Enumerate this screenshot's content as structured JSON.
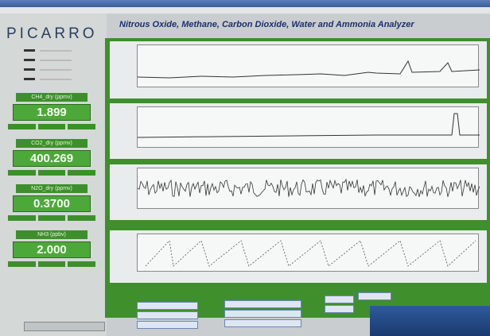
{
  "header": {
    "brand": "PICARRO",
    "title": "Nitrous Oxide, Methane, Carbon Dioxide, Water and Ammonia Analyzer"
  },
  "readouts": [
    {
      "label": "CH4_dry (ppmv)",
      "value": "1.899"
    },
    {
      "label": "CO2_dry (ppmv)",
      "value": "400.269"
    },
    {
      "label": "N2O_dry (ppmv)",
      "value": "0.3700"
    },
    {
      "label": "NH3 (ppbv)",
      "value": "2.000"
    }
  ]
}
